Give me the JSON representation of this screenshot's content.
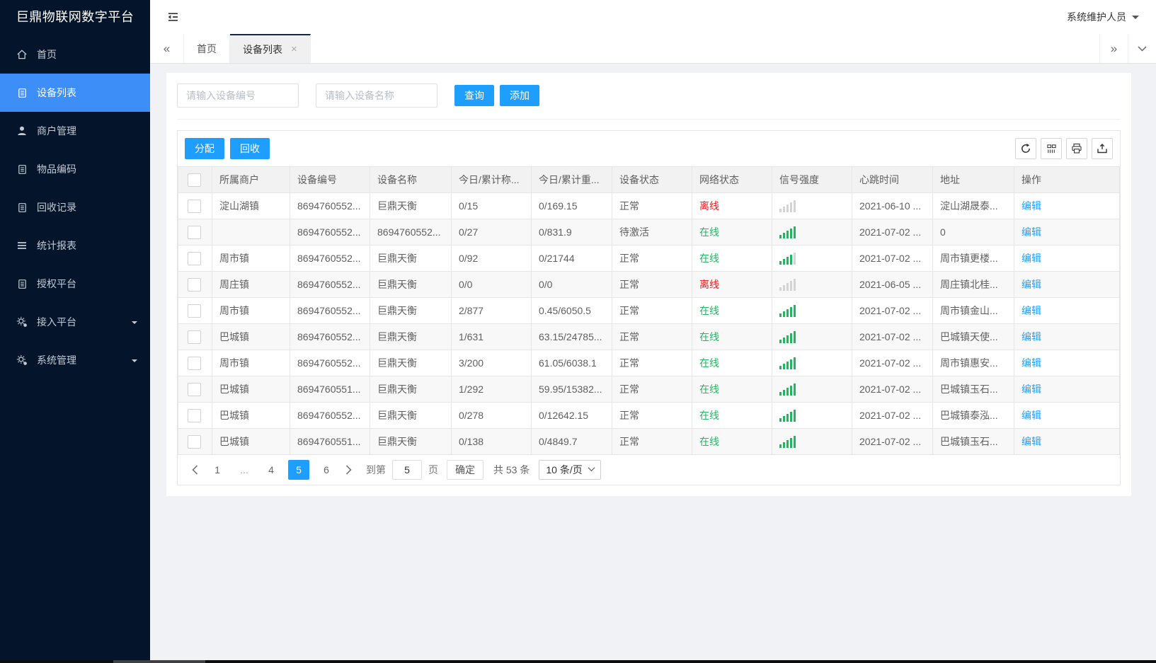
{
  "app": {
    "logo_title": "巨鼎物联网数字平台",
    "user_name": "系统维护人员"
  },
  "colors": {
    "sidebar_bg": "#04152b",
    "active_menu_blue": "#3e8ef7",
    "accent_blue": "#1E9FFF",
    "online_green": "#1fb85f",
    "offline_red": "#ff1212",
    "active_tab_topline": "#142941"
  },
  "sidebar": {
    "items": [
      {
        "id": "home",
        "label": "首页",
        "icon": "home-icon",
        "active": false,
        "expandable": false
      },
      {
        "id": "devices",
        "label": "设备列表",
        "icon": "list-icon",
        "active": true,
        "expandable": false
      },
      {
        "id": "merchants",
        "label": "商户管理",
        "icon": "user-icon",
        "active": false,
        "expandable": false
      },
      {
        "id": "item-codes",
        "label": "物品编码",
        "icon": "doc-icon",
        "active": false,
        "expandable": false
      },
      {
        "id": "recycle",
        "label": "回收记录",
        "icon": "doc-icon",
        "active": false,
        "expandable": false
      },
      {
        "id": "reports",
        "label": "统计报表",
        "icon": "menu-icon",
        "active": false,
        "expandable": false
      },
      {
        "id": "authorize",
        "label": "授权平台",
        "icon": "doc-icon",
        "active": false,
        "expandable": false
      },
      {
        "id": "access",
        "label": "接入平台",
        "icon": "gear-icon",
        "active": false,
        "expandable": true
      },
      {
        "id": "system",
        "label": "系统管理",
        "icon": "gear-icon",
        "active": false,
        "expandable": true
      }
    ]
  },
  "tabbar": {
    "scroll_left_glyph": "«",
    "scroll_right_glyph": "»",
    "tabs": [
      {
        "label": "首页",
        "active": false
      },
      {
        "label": "设备列表",
        "active": true,
        "close_glyph": "×"
      }
    ]
  },
  "search": {
    "device_no_placeholder": "请输入设备编号",
    "device_name_placeholder": "请输入设备名称",
    "query_label": "查询",
    "add_label": "添加"
  },
  "toolbar": {
    "assign_label": "分配",
    "recycle_label": "回收",
    "icon_buttons": [
      "refresh-icon",
      "columns-icon",
      "print-icon",
      "export-icon"
    ]
  },
  "table": {
    "columns": [
      "所属商户",
      "设备编号",
      "设备名称",
      "今日/累计称...",
      "今日/累计重...",
      "设备状态",
      "网络状态",
      "信号强度",
      "心跳时间",
      "地址",
      "操作"
    ],
    "online_text": "在线",
    "offline_text": "离线",
    "edit_label": "编辑",
    "rows": [
      {
        "merchant": "淀山湖镇",
        "device_no": "8694760552...",
        "device_name": "巨鼎天衡",
        "today_count": "0/15",
        "today_weight": "0/169.15",
        "status": "正常",
        "network": "离线",
        "signal": 0,
        "heartbeat": "2021-06-10 ...",
        "address": "淀山湖晟泰..."
      },
      {
        "merchant": "",
        "device_no": "8694760552...",
        "device_name": "8694760552...",
        "today_count": "0/27",
        "today_weight": "0/831.9",
        "status": "待激活",
        "network": "在线",
        "signal": 5,
        "heartbeat": "2021-07-02 ...",
        "address": "0"
      },
      {
        "merchant": "周市镇",
        "device_no": "8694760552...",
        "device_name": "巨鼎天衡",
        "today_count": "0/92",
        "today_weight": "0/21744",
        "status": "正常",
        "network": "在线",
        "signal": 4,
        "heartbeat": "2021-07-02 ...",
        "address": "周市镇更楼..."
      },
      {
        "merchant": "周庄镇",
        "device_no": "8694760552...",
        "device_name": "巨鼎天衡",
        "today_count": "0/0",
        "today_weight": "0/0",
        "status": "正常",
        "network": "离线",
        "signal": 0,
        "heartbeat": "2021-06-05 ...",
        "address": "周庄镇北桂..."
      },
      {
        "merchant": "周市镇",
        "device_no": "8694760552...",
        "device_name": "巨鼎天衡",
        "today_count": "2/877",
        "today_weight": "0.45/6050.5",
        "status": "正常",
        "network": "在线",
        "signal": 5,
        "heartbeat": "2021-07-02 ...",
        "address": "周市镇金山..."
      },
      {
        "merchant": "巴城镇",
        "device_no": "8694760552...",
        "device_name": "巨鼎天衡",
        "today_count": "1/631",
        "today_weight": "63.15/24785...",
        "status": "正常",
        "network": "在线",
        "signal": 5,
        "heartbeat": "2021-07-02 ...",
        "address": "巴城镇天使..."
      },
      {
        "merchant": "周市镇",
        "device_no": "8694760552...",
        "device_name": "巨鼎天衡",
        "today_count": "3/200",
        "today_weight": "61.05/6038.1",
        "status": "正常",
        "network": "在线",
        "signal": 5,
        "heartbeat": "2021-07-02 ...",
        "address": "周市镇惠安..."
      },
      {
        "merchant": "巴城镇",
        "device_no": "8694760551...",
        "device_name": "巨鼎天衡",
        "today_count": "1/292",
        "today_weight": "59.95/15382...",
        "status": "正常",
        "network": "在线",
        "signal": 5,
        "heartbeat": "2021-07-02 ...",
        "address": "巴城镇玉石..."
      },
      {
        "merchant": "巴城镇",
        "device_no": "8694760552...",
        "device_name": "巨鼎天衡",
        "today_count": "0/278",
        "today_weight": "0/12642.15",
        "status": "正常",
        "network": "在线",
        "signal": 5,
        "heartbeat": "2021-07-02 ...",
        "address": "巴城镇泰泓..."
      },
      {
        "merchant": "巴城镇",
        "device_no": "8694760551...",
        "device_name": "巨鼎天衡",
        "today_count": "0/138",
        "today_weight": "0/4849.7",
        "status": "正常",
        "network": "在线",
        "signal": 5,
        "heartbeat": "2021-07-02 ...",
        "address": "巴城镇玉石..."
      }
    ]
  },
  "pagination": {
    "pages": [
      {
        "label": "1",
        "active": false,
        "ellipsis": false
      },
      {
        "label": "...",
        "active": false,
        "ellipsis": true
      },
      {
        "label": "4",
        "active": false,
        "ellipsis": false
      },
      {
        "label": "5",
        "active": true,
        "ellipsis": false
      },
      {
        "label": "6",
        "active": false,
        "ellipsis": false
      }
    ],
    "goto_label": "到第",
    "goto_value": "5",
    "page_unit_label": "页",
    "confirm_label": "确定",
    "total_label": "共 53 条",
    "page_size_label": "10 条/页"
  }
}
